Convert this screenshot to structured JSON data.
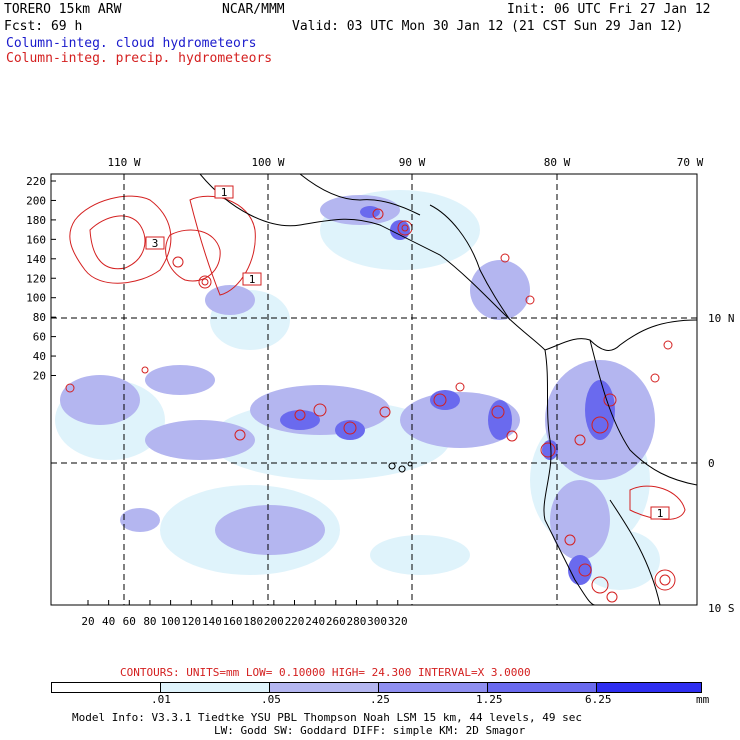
{
  "header": {
    "model": "TORERO  15km ARW",
    "org": "NCAR/MMM",
    "init": "Init: 06 UTC Fri 27 Jan 12",
    "fcst": "Fcst:   69 h",
    "valid": "Valid: 03 UTC Mon 30 Jan 12 (21 CST Sun 29 Jan 12)",
    "field_cloud": "Column-integ. cloud hydrometeors",
    "field_precip": "Column-integ. precip. hydrometeors"
  },
  "colors": {
    "cloud_text": "#1a1acc",
    "precip": "#d42020",
    "shade_1": "#dff3fb",
    "shade_2": "#b4b6f0",
    "shade_3": "#8f8ff0",
    "shade_4": "#6a6aee",
    "shade_5": "#2e2ef0"
  },
  "map": {
    "top_lon_labels": [
      "110 W",
      "100 W",
      "90 W",
      "80 W",
      "70 W"
    ],
    "right_lat_labels": [
      "10 N",
      "0",
      "10 S"
    ],
    "y_ticks": [
      "220",
      "200",
      "180",
      "160",
      "140",
      "120",
      "100",
      "80",
      "60",
      "40",
      "20"
    ],
    "x_ticks": [
      "20",
      "40",
      "60",
      "80",
      "100",
      "120",
      "140",
      "160",
      "180",
      "200",
      "220",
      "240",
      "260",
      "280",
      "300",
      "320"
    ],
    "contour_labels": [
      "1",
      "3",
      "1",
      "1"
    ],
    "grid_dashed": true
  },
  "legend": {
    "contours_note": "CONTOURS:  UNITS=mm  LOW= 0.10000       HIGH=  24.300       INTERVAL=X  3.0000",
    "thresholds": [
      ".01",
      ".05",
      ".25",
      "1.25",
      "6.25"
    ],
    "unit": "mm"
  },
  "footer": {
    "line1": "Model Info: V3.3.1   Tiedtke YSU PBL  Thompson     Noah LSM  15 km,   44 levels,    49 sec",
    "line2": "LW: Godd SW: Goddard DIFF: simple KM: 2D Smagor"
  }
}
